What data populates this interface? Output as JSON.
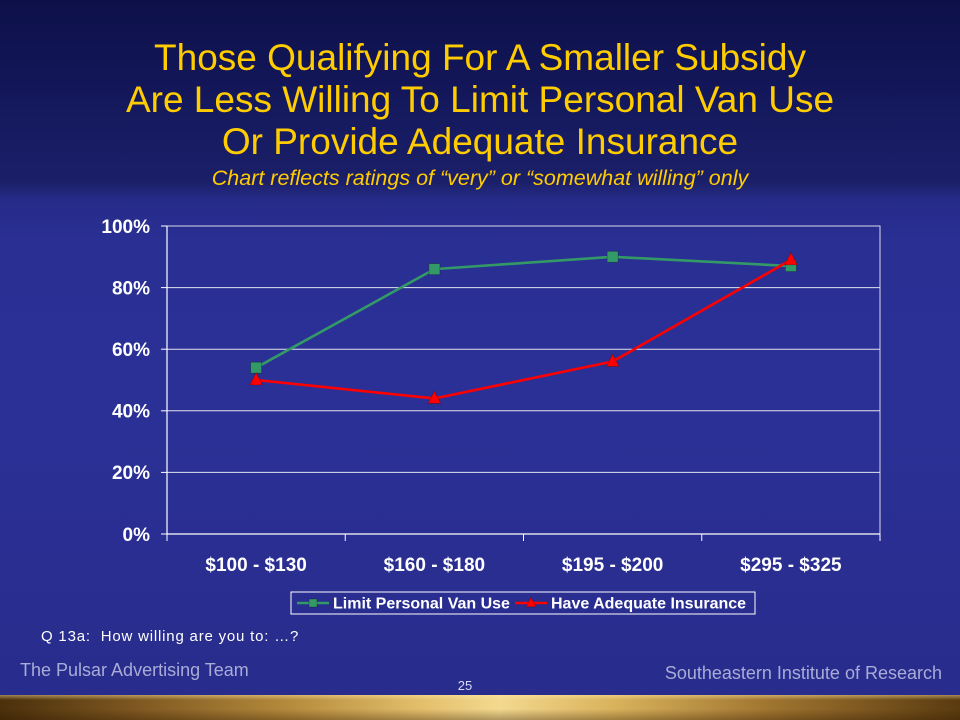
{
  "slide": {
    "title_lines": [
      "Those Qualifying For A Smaller Subsidy",
      "Are Less Willing To Limit Personal Van Use",
      "Or Provide Adequate Insurance"
    ],
    "subtitle": "Chart reflects ratings of “very” or “somewhat willing” only",
    "question_note": "Q 13a:  How willing are you to: …?",
    "footer_left": "The Pulsar Advertising Team",
    "footer_right": "Southeastern Institute of Research",
    "page_number": "25"
  },
  "colors": {
    "title_text": "#ffcc00",
    "axis_text": "#ffffff",
    "note_text": "#ffffff",
    "footer_text": "#a9acd6",
    "page_number_text": "#dcdcf4"
  },
  "chart_data": {
    "type": "line",
    "categories": [
      "$100 - $130",
      "$160 - $180",
      "$195 - $200",
      "$295 - $325"
    ],
    "series": [
      {
        "name": "Limit Personal Van Use",
        "values": [
          54,
          86,
          90,
          87
        ],
        "color": "#339966",
        "marker": "square"
      },
      {
        "name": "Have Adequate Insurance",
        "values": [
          50,
          44,
          56,
          89
        ],
        "color": "#ff0000",
        "marker": "triangle"
      }
    ],
    "ylim": [
      0,
      100
    ],
    "yticks": [
      0,
      20,
      40,
      60,
      80,
      100
    ],
    "ytick_labels": [
      "0%",
      "20%",
      "40%",
      "60%",
      "80%",
      "100%"
    ],
    "grid": true,
    "legend": "bottom"
  }
}
